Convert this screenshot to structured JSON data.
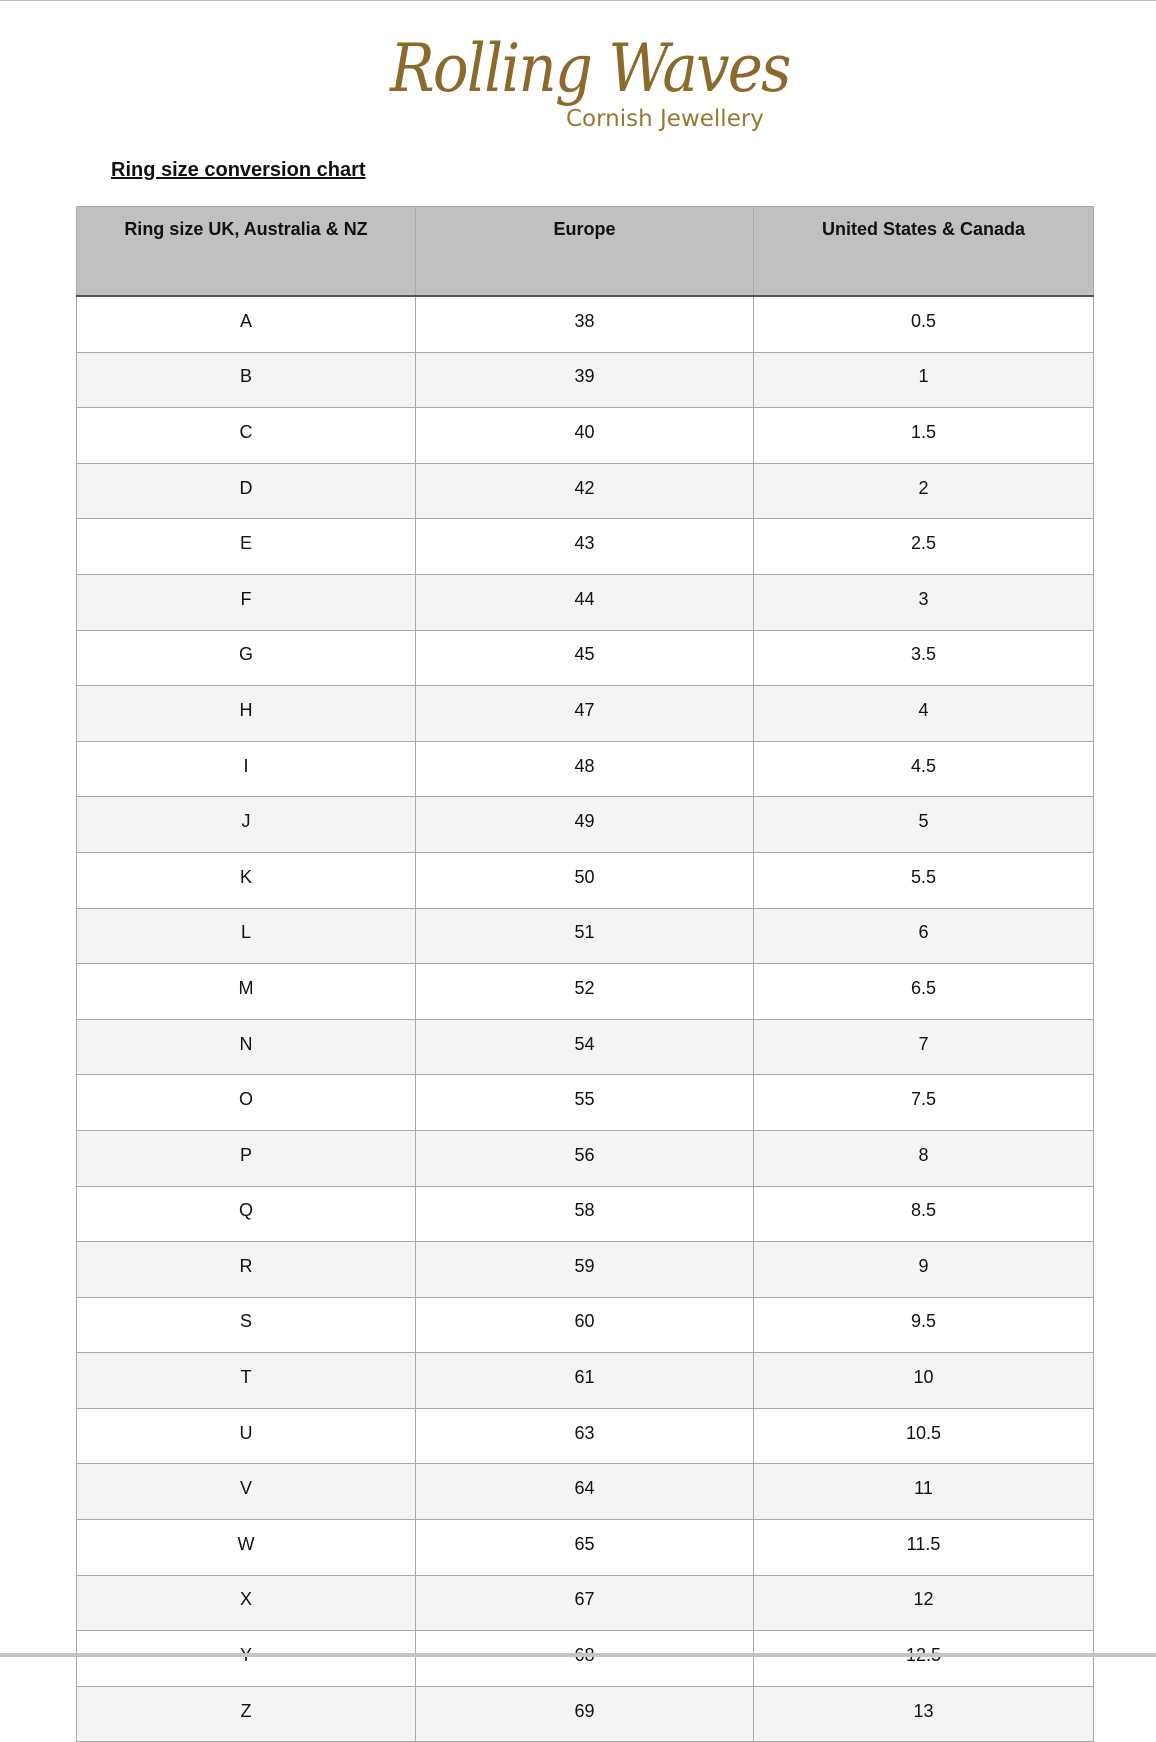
{
  "logo": {
    "brand": "Rolling Waves",
    "tagline": "Cornish Jewellery",
    "color": "#8b6a2c"
  },
  "title": "Ring size conversion chart",
  "table": {
    "headers": [
      "Ring size UK, Australia & NZ",
      "Europe",
      "United States & Canada"
    ],
    "rows": [
      [
        "A",
        "38",
        "0.5"
      ],
      [
        "B",
        "39",
        "1"
      ],
      [
        "C",
        "40",
        "1.5"
      ],
      [
        "D",
        "42",
        "2"
      ],
      [
        "E",
        "43",
        "2.5"
      ],
      [
        "F",
        "44",
        "3"
      ],
      [
        "G",
        "45",
        "3.5"
      ],
      [
        "H",
        "47",
        "4"
      ],
      [
        "I",
        "48",
        "4.5"
      ],
      [
        "J",
        "49",
        "5"
      ],
      [
        "K",
        "50",
        "5.5"
      ],
      [
        "L",
        "51",
        "6"
      ],
      [
        "M",
        "52",
        "6.5"
      ],
      [
        "N",
        "54",
        "7"
      ],
      [
        "O",
        "55",
        "7.5"
      ],
      [
        "P",
        "56",
        "8"
      ],
      [
        "Q",
        "58",
        "8.5"
      ],
      [
        "R",
        "59",
        "9"
      ],
      [
        "S",
        "60",
        "9.5"
      ],
      [
        "T",
        "61",
        "10"
      ],
      [
        "U",
        "63",
        "10.5"
      ],
      [
        "V",
        "64",
        "11"
      ],
      [
        "W",
        "65",
        "11.5"
      ],
      [
        "X",
        "67",
        "12"
      ],
      [
        "Y",
        "68",
        "12.5"
      ],
      [
        "Z",
        "69",
        "13"
      ]
    ]
  }
}
